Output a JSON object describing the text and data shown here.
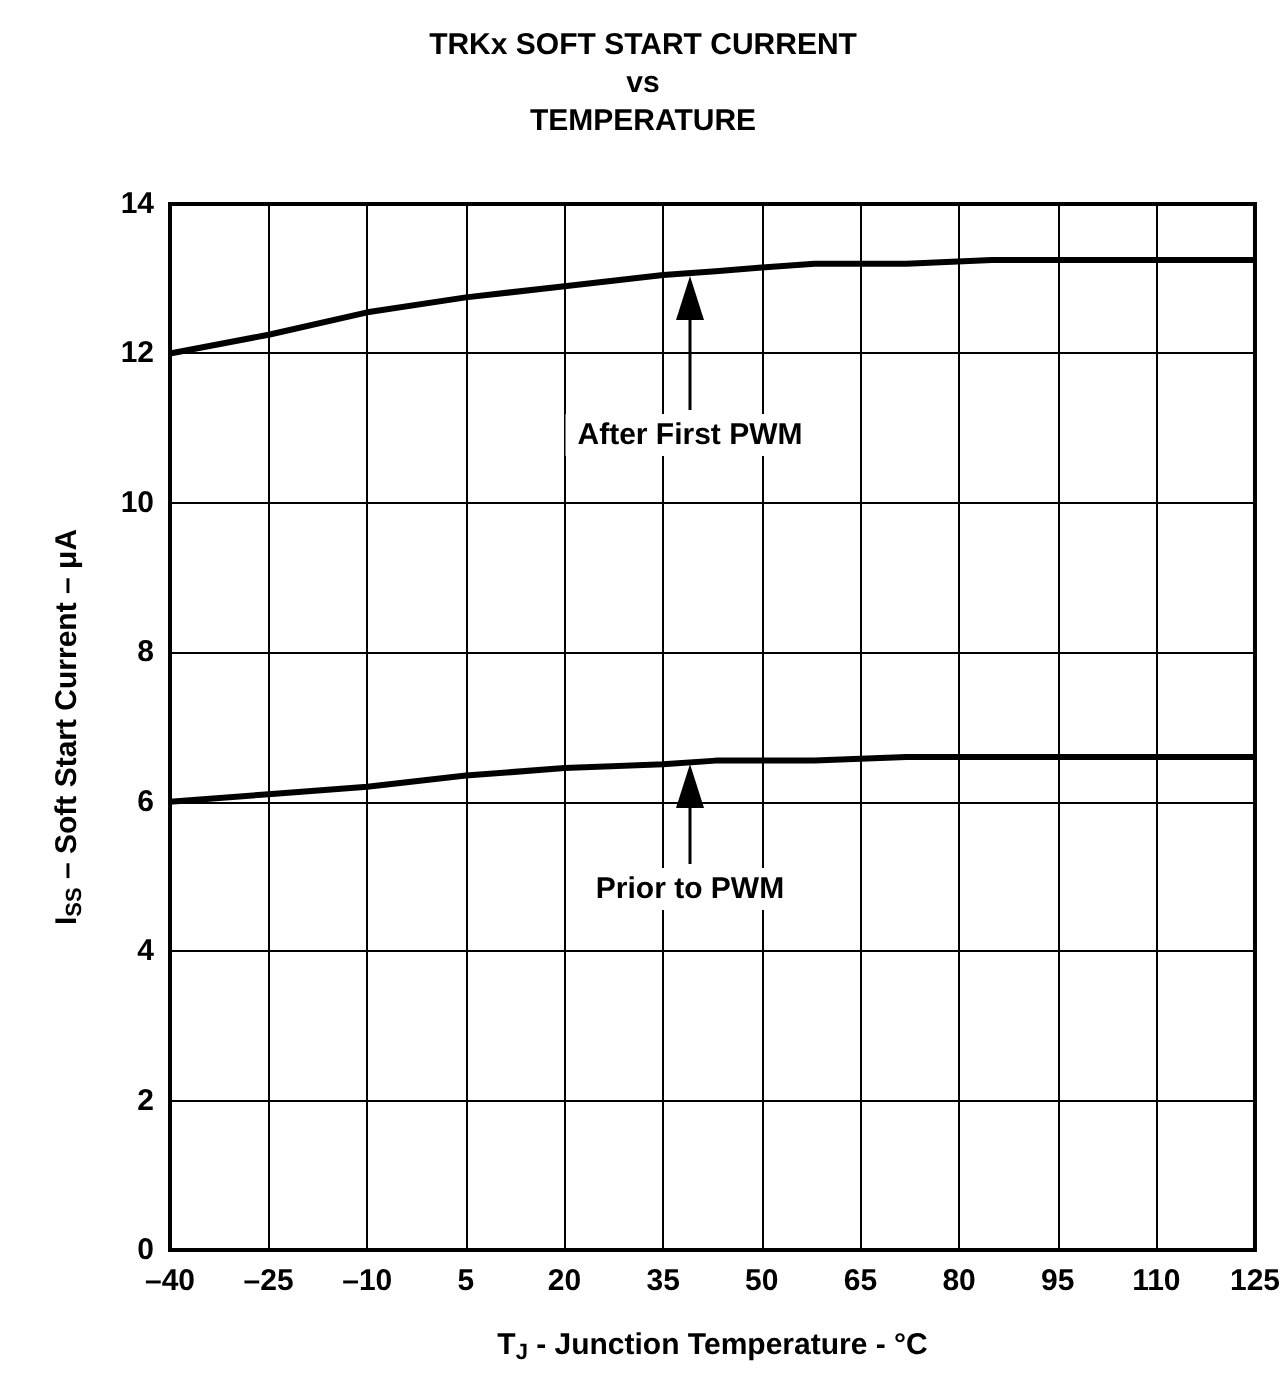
{
  "chart_data": {
    "type": "line",
    "title": "TRKx SOFT START CURRENT\nvs\nTEMPERATURE",
    "xlabel": "T$_{J}$ - Junction Temperature - °C",
    "ylabel": "I$_{SS}$ – Soft Start Current – μA",
    "series": [
      {
        "color": "#000000",
        "x": [
          -40,
          -25,
          -10,
          5,
          20,
          35,
          43,
          50,
          58,
          72,
          85,
          125
        ],
        "values": [
          12.0,
          12.25,
          12.55,
          12.75,
          12.9,
          13.05,
          13.1,
          13.15,
          13.2,
          13.2,
          13.25,
          13.25
        ]
      },
      {
        "color": "#000000",
        "x": [
          -40,
          -25,
          -10,
          5,
          20,
          35,
          43,
          58,
          72,
          125
        ],
        "values": [
          6.0,
          6.1,
          6.2,
          6.35,
          6.45,
          6.5,
          6.55,
          6.55,
          6.6,
          6.6
        ]
      }
    ],
    "annotations": [
      "After First PWM",
      "Prior to PWM"
    ],
    "xlim": [
      -40,
      125
    ],
    "xticks": [
      {
        "value": -40,
        "label": "–40"
      },
      {
        "value": -25,
        "label": "–25"
      },
      {
        "value": -10,
        "label": "–10"
      },
      5,
      20,
      35,
      50,
      65,
      80,
      95,
      110,
      125
    ],
    "ylim": [
      0,
      14
    ],
    "yticks": [
      0,
      2,
      4,
      6,
      8,
      10,
      12,
      14
    ],
    "grid": true,
    "marker": "none",
    "line_style": "solid"
  }
}
